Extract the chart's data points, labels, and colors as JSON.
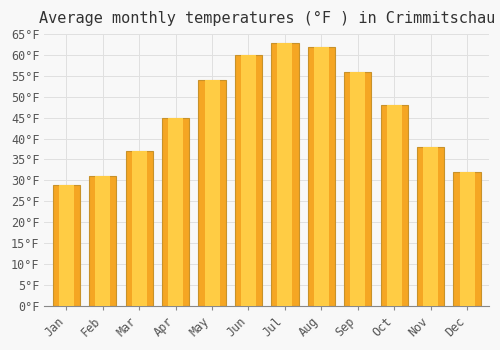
{
  "title": "Average monthly temperatures (°F ) in Crimmitschau",
  "months": [
    "Jan",
    "Feb",
    "Mar",
    "Apr",
    "May",
    "Jun",
    "Jul",
    "Aug",
    "Sep",
    "Oct",
    "Nov",
    "Dec"
  ],
  "values": [
    29,
    31,
    37,
    45,
    54,
    60,
    63,
    62,
    56,
    48,
    38,
    32
  ],
  "bar_color_light": "#FFCC44",
  "bar_color_dark": "#F5A623",
  "bar_edge_color": "#C8922A",
  "background_color": "#F8F8F8",
  "grid_color": "#E0E0E0",
  "ylim": [
    0,
    65
  ],
  "yticks": [
    0,
    5,
    10,
    15,
    20,
    25,
    30,
    35,
    40,
    45,
    50,
    55,
    60,
    65
  ],
  "ylabel_suffix": "°F",
  "title_fontsize": 11,
  "tick_fontsize": 8.5,
  "font_family": "monospace"
}
